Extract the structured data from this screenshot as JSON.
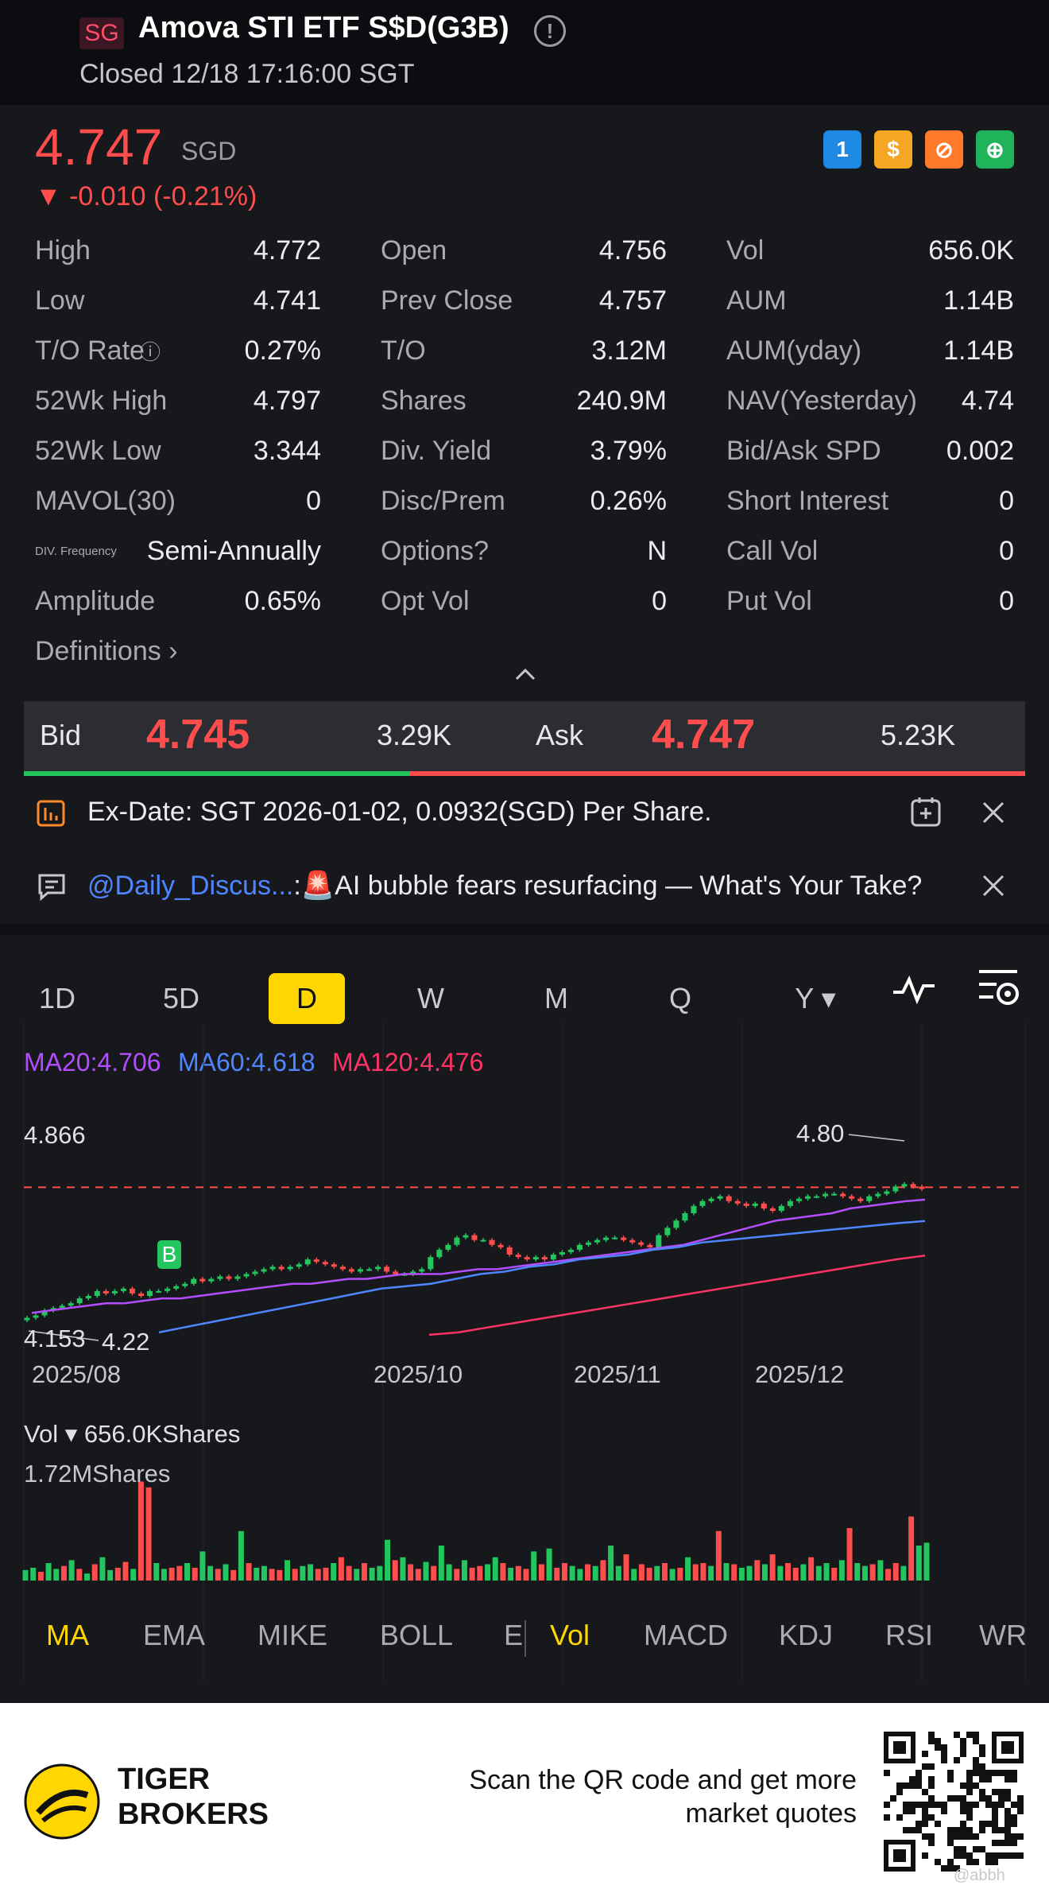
{
  "header": {
    "market_badge": "SG",
    "title": "Amova STI ETF S$D(G3B)",
    "status": "Closed 12/18 17:16:00 SGT"
  },
  "quote": {
    "price": "4.747",
    "currency": "SGD",
    "change": "▼ -0.010 (-0.21%)",
    "price_color": "#ff4d4d",
    "badges": [
      {
        "icon": "lightning-icon",
        "label": "1",
        "color": "#1e88e5"
      },
      {
        "icon": "dollar-icon",
        "label": "$",
        "color": "#f5a623"
      },
      {
        "icon": "no-short-icon",
        "label": "⊘",
        "color": "#ff7a2b"
      },
      {
        "icon": "savings-icon",
        "label": "⊕",
        "color": "#1fb35a"
      }
    ]
  },
  "stats": [
    [
      {
        "label": "High",
        "value": "4.772"
      },
      {
        "label": "Open",
        "value": "4.756"
      },
      {
        "label": "Vol",
        "value": "656.0K"
      }
    ],
    [
      {
        "label": "Low",
        "value": "4.741"
      },
      {
        "label": "Prev Close",
        "value": "4.757"
      },
      {
        "label": "AUM",
        "value": "1.14B"
      }
    ],
    [
      {
        "label": "T/O Rate",
        "value": "0.27%"
      },
      {
        "label": "T/O",
        "value": "3.12M"
      },
      {
        "label": "AUM(yday)",
        "value": "1.14B"
      }
    ],
    [
      {
        "label": "52Wk High",
        "value": "4.797"
      },
      {
        "label": "Shares",
        "value": "240.9M"
      },
      {
        "label": "NAV(Yesterday)",
        "value": "4.74"
      }
    ],
    [
      {
        "label": "52Wk Low",
        "value": "3.344"
      },
      {
        "label": "Div. Yield",
        "value": "3.79%"
      },
      {
        "label": "Bid/Ask SPD",
        "value": "0.002"
      }
    ],
    [
      {
        "label": "MAVOL(30)",
        "value": "0"
      },
      {
        "label": "Disc/Prem",
        "value": "0.26%"
      },
      {
        "label": "Short Interest",
        "value": "0"
      }
    ],
    [
      {
        "label": "DIV. Frequency",
        "value": "Semi-Annually"
      },
      {
        "label": "Options?",
        "value": "N"
      },
      {
        "label": "Call Vol",
        "value": "0"
      }
    ],
    [
      {
        "label": "Amplitude",
        "value": "0.65%"
      },
      {
        "label": "Opt Vol",
        "value": "0"
      },
      {
        "label": "Put Vol",
        "value": "0"
      }
    ]
  ],
  "definitions_label": "Definitions",
  "bid_ask": {
    "bid_label": "Bid",
    "bid_price": "4.745",
    "bid_size": "3.29K",
    "ask_label": "Ask",
    "ask_price": "4.747",
    "ask_size": "5.23K",
    "bid_share": 0.386
  },
  "notices": {
    "exdate_text": "Ex-Date: SGT 2026-01-02, 0.0932(SGD) Per Share.",
    "discuss_user": "@Daily_Discus...",
    "discuss_sep": ":",
    "discuss_text": "AI bubble fears resurfacing — What's Your Take?"
  },
  "tabs": [
    "1D",
    "5D",
    "D",
    "W",
    "M",
    "Q",
    "Y ▾"
  ],
  "active_tab": "D",
  "chart_data": {
    "type": "candlestick",
    "ma_legend": [
      {
        "label": "MA20:4.706",
        "color": "#b44dff"
      },
      {
        "label": "MA60:4.618",
        "color": "#4f86ff"
      },
      {
        "label": "MA120:4.476",
        "color": "#ff3366"
      }
    ],
    "y_top_label": "4.866",
    "y_bottom_label": "4.153",
    "high_marker": "4.80",
    "low_marker": "4.22",
    "buy_marker": "B",
    "x_labels": [
      "2025/08",
      "2025/10",
      "2025/11",
      "2025/12"
    ],
    "prev_close": 4.757,
    "ylim": [
      4.153,
      4.866
    ],
    "closes": [
      4.22,
      4.23,
      4.25,
      4.26,
      4.27,
      4.28,
      4.3,
      4.31,
      4.33,
      4.32,
      4.33,
      4.34,
      4.32,
      4.31,
      4.33,
      4.33,
      4.34,
      4.35,
      4.36,
      4.38,
      4.37,
      4.38,
      4.39,
      4.38,
      4.39,
      4.4,
      4.41,
      4.42,
      4.43,
      4.42,
      4.43,
      4.44,
      4.46,
      4.45,
      4.44,
      4.43,
      4.42,
      4.41,
      4.42,
      4.42,
      4.43,
      4.41,
      4.4,
      4.4,
      4.41,
      4.42,
      4.47,
      4.5,
      4.52,
      4.55,
      4.56,
      4.54,
      4.54,
      4.52,
      4.51,
      4.48,
      4.47,
      4.46,
      4.47,
      4.46,
      4.48,
      4.49,
      4.5,
      4.52,
      4.53,
      4.54,
      4.55,
      4.55,
      4.54,
      4.53,
      4.52,
      4.51,
      4.56,
      4.59,
      4.62,
      4.65,
      4.68,
      4.7,
      4.71,
      4.72,
      4.7,
      4.69,
      4.68,
      4.69,
      4.67,
      4.66,
      4.68,
      4.7,
      4.71,
      4.72,
      4.72,
      4.73,
      4.73,
      4.72,
      4.71,
      4.7,
      4.72,
      4.73,
      4.74,
      4.76,
      4.77,
      4.76,
      4.75
    ],
    "ma20": [
      4.24,
      4.25,
      4.26,
      4.27,
      4.28,
      4.28,
      4.29,
      4.3,
      4.3,
      4.31,
      4.32,
      4.33,
      4.34,
      4.35,
      4.36,
      4.36,
      4.37,
      4.38,
      4.38,
      4.39,
      4.4,
      4.4,
      4.4,
      4.41,
      4.42,
      4.42,
      4.43,
      4.44,
      4.45,
      4.46,
      4.47,
      4.48,
      4.49,
      4.5,
      4.51,
      4.52,
      4.54,
      4.56,
      4.58,
      4.6,
      4.62,
      4.63,
      4.64,
      4.65,
      4.67,
      4.68,
      4.69,
      4.7,
      4.706
    ],
    "ma60": [
      4.16,
      4.18,
      4.2,
      4.22,
      4.24,
      4.26,
      4.28,
      4.3,
      4.32,
      4.34,
      4.35,
      4.36,
      4.38,
      4.4,
      4.41,
      4.43,
      4.44,
      4.46,
      4.47,
      4.48,
      4.5,
      4.51,
      4.53,
      4.54,
      4.55,
      4.56,
      4.57,
      4.58,
      4.59,
      4.6,
      4.61,
      4.618
    ],
    "ma120": [
      4.15,
      4.16,
      4.18,
      4.2,
      4.22,
      4.24,
      4.26,
      4.28,
      4.3,
      4.32,
      4.34,
      4.36,
      4.38,
      4.4,
      4.42,
      4.44,
      4.46,
      4.476
    ]
  },
  "volume": {
    "header": "Vol ▾ 656.0KShares",
    "max_label": "1.72MShares",
    "max": 1.72,
    "values": [
      0.18,
      0.22,
      0.15,
      0.3,
      0.2,
      0.25,
      0.35,
      0.2,
      0.12,
      0.28,
      0.4,
      0.18,
      0.22,
      0.32,
      0.2,
      1.7,
      1.6,
      0.3,
      0.2,
      0.22,
      0.25,
      0.3,
      0.22,
      0.5,
      0.25,
      0.2,
      0.28,
      0.18,
      0.85,
      0.3,
      0.22,
      0.25,
      0.2,
      0.18,
      0.35,
      0.2,
      0.25,
      0.28,
      0.2,
      0.22,
      0.3,
      0.4,
      0.25,
      0.2,
      0.3,
      0.22,
      0.25,
      0.7,
      0.35,
      0.4,
      0.28,
      0.2,
      0.32,
      0.25,
      0.6,
      0.28,
      0.2,
      0.35,
      0.22,
      0.25,
      0.28,
      0.4,
      0.3,
      0.22,
      0.25,
      0.2,
      0.5,
      0.28,
      0.55,
      0.22,
      0.3,
      0.25,
      0.2,
      0.28,
      0.25,
      0.35,
      0.6,
      0.25,
      0.45,
      0.2,
      0.28,
      0.22,
      0.25,
      0.3,
      0.2,
      0.22,
      0.4,
      0.28,
      0.3,
      0.25,
      0.85,
      0.3,
      0.28,
      0.22,
      0.25,
      0.35,
      0.28,
      0.45,
      0.25,
      0.3,
      0.22,
      0.28,
      0.4,
      0.25,
      0.3,
      0.22,
      0.35,
      0.9,
      0.3,
      0.25,
      0.28,
      0.35,
      0.2,
      0.3,
      0.25,
      1.1,
      0.6,
      0.65
    ],
    "up_flags": [
      1,
      1,
      0,
      1,
      1,
      0,
      1,
      0,
      1,
      0,
      1,
      1,
      0,
      0,
      1,
      0,
      0,
      1,
      1,
      0,
      0,
      1,
      0,
      1,
      1,
      0,
      1,
      0,
      1,
      0,
      1,
      1,
      0,
      0,
      1,
      0,
      1,
      1,
      0,
      0,
      1,
      0,
      0,
      1,
      0,
      1,
      1,
      1,
      0,
      1,
      0,
      0,
      1,
      0,
      1,
      1,
      0,
      1,
      0,
      0,
      1,
      1,
      0,
      1,
      0,
      0,
      1,
      0,
      1,
      0,
      0,
      1,
      1,
      0,
      1,
      0,
      1,
      1,
      0,
      1,
      0,
      0,
      1,
      0,
      1,
      0,
      1,
      0,
      0,
      1,
      0,
      1,
      0,
      1,
      1,
      0,
      1,
      0,
      1,
      0,
      0,
      1,
      0,
      1,
      1,
      0,
      1,
      0,
      1,
      1,
      0,
      1,
      0,
      0,
      1,
      0,
      1,
      1
    ]
  },
  "indicators": [
    "MA",
    "EMA",
    "MIKE",
    "BOLL",
    "E",
    "Vol",
    "MACD",
    "KDJ",
    "RSI",
    "WR"
  ],
  "active_indicators": [
    "MA",
    "Vol"
  ],
  "footer": {
    "brand_line1": "TIGER",
    "brand_line2": "BROKERS",
    "cta_line1": "Scan the QR code and get more",
    "cta_line2": "market quotes",
    "watermark": "@abbh"
  }
}
